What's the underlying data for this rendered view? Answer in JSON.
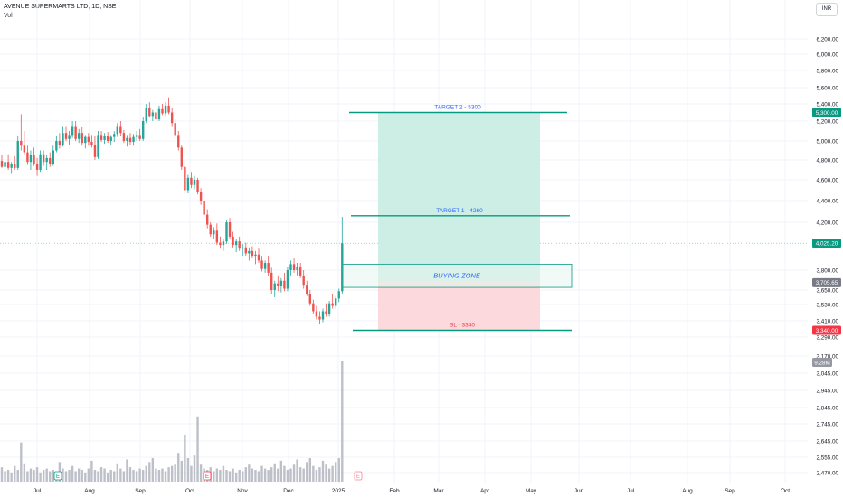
{
  "header": {
    "symbol_title": "AVENUE SUPERMARTS LTD, 1D, NSE",
    "volume_label": "Vol",
    "currency_button": "INR"
  },
  "colors": {
    "up": "#26a69a",
    "down": "#ef5350",
    "volume": "#b2b5be",
    "target_line": "#089981",
    "target_zone_fill": "#cdeee4",
    "stop_zone_fill": "#fcd9dc",
    "stop_line": "#089981",
    "buying_zone_border": "#089981",
    "buying_zone_fill": "#e6f5ee",
    "buying_zone_text": "#2962ff",
    "last_price_badge": "#089981",
    "target2_badge": "#089981",
    "sl_badge": "#f23645",
    "buy_badge": "#787b86",
    "vol_badge": "#9598a1"
  },
  "chart_data": {
    "type": "candlestick",
    "price_axis": {
      "ticks": [
        "6,200.00",
        "6,000.00",
        "5,800.00",
        "5,600.00",
        "5,400.00",
        "5,200.00",
        "5,000.00",
        "4,800.00",
        "4,600.00",
        "4,400.00",
        "4,200.00",
        "3,800.00",
        "3,650.00",
        "3,530.00",
        "3,410.00",
        "3,290.00",
        "3,170.00",
        "3,045.00",
        "2,945.00",
        "2,845.00",
        "2,745.00",
        "2,645.00",
        "2,555.00",
        "2,470.00"
      ],
      "tick_values": [
        6200,
        6000,
        5800,
        5600,
        5400,
        5200,
        5000,
        4800,
        4600,
        4400,
        4200,
        3800,
        3650,
        3530,
        3410,
        3290,
        3170,
        3045,
        2945,
        2845,
        2745,
        2645,
        2555,
        2470
      ],
      "scale": "non-linear"
    },
    "time_axis": [
      "Jul",
      "Aug",
      "Sep",
      "Oct",
      "Nov",
      "Dec",
      "2025",
      "Feb",
      "Mar",
      "Apr",
      "May",
      "Jun",
      "Jul",
      "Aug",
      "Sep",
      "Oct"
    ],
    "candles": [
      {
        "o": 4790,
        "h": 4850,
        "l": 4720,
        "c": 4730
      },
      {
        "o": 4730,
        "h": 4800,
        "l": 4690,
        "c": 4780
      },
      {
        "o": 4780,
        "h": 4860,
        "l": 4700,
        "c": 4720
      },
      {
        "o": 4720,
        "h": 4780,
        "l": 4660,
        "c": 4760
      },
      {
        "o": 4760,
        "h": 4840,
        "l": 4700,
        "c": 4720
      },
      {
        "o": 4720,
        "h": 5050,
        "l": 4700,
        "c": 5000
      },
      {
        "o": 5000,
        "h": 5280,
        "l": 4900,
        "c": 4950
      },
      {
        "o": 4950,
        "h": 5100,
        "l": 4850,
        "c": 4880
      },
      {
        "o": 4880,
        "h": 4950,
        "l": 4750,
        "c": 4780
      },
      {
        "o": 4780,
        "h": 4900,
        "l": 4700,
        "c": 4850
      },
      {
        "o": 4850,
        "h": 4930,
        "l": 4740,
        "c": 4760
      },
      {
        "o": 4760,
        "h": 4820,
        "l": 4640,
        "c": 4700
      },
      {
        "o": 4700,
        "h": 4900,
        "l": 4680,
        "c": 4860
      },
      {
        "o": 4860,
        "h": 4900,
        "l": 4740,
        "c": 4780
      },
      {
        "o": 4780,
        "h": 4850,
        "l": 4700,
        "c": 4820
      },
      {
        "o": 4820,
        "h": 4880,
        "l": 4730,
        "c": 4760
      },
      {
        "o": 4760,
        "h": 4950,
        "l": 4740,
        "c": 4900
      },
      {
        "o": 4900,
        "h": 5050,
        "l": 4880,
        "c": 5000
      },
      {
        "o": 5000,
        "h": 5080,
        "l": 4920,
        "c": 4960
      },
      {
        "o": 4960,
        "h": 5150,
        "l": 4940,
        "c": 5080
      },
      {
        "o": 5080,
        "h": 5150,
        "l": 5000,
        "c": 5020
      },
      {
        "o": 5020,
        "h": 5100,
        "l": 4960,
        "c": 5060
      },
      {
        "o": 5060,
        "h": 5200,
        "l": 5030,
        "c": 5150
      },
      {
        "o": 5150,
        "h": 5200,
        "l": 5000,
        "c": 5020
      },
      {
        "o": 5020,
        "h": 5120,
        "l": 4980,
        "c": 5080
      },
      {
        "o": 5080,
        "h": 5140,
        "l": 4950,
        "c": 4980
      },
      {
        "o": 4980,
        "h": 5060,
        "l": 4920,
        "c": 5040
      },
      {
        "o": 5040,
        "h": 5080,
        "l": 4950,
        "c": 4990
      },
      {
        "o": 4990,
        "h": 5060,
        "l": 4930,
        "c": 4960
      },
      {
        "o": 4960,
        "h": 5050,
        "l": 4800,
        "c": 4830
      },
      {
        "o": 4830,
        "h": 5100,
        "l": 4810,
        "c": 5060
      },
      {
        "o": 5060,
        "h": 5100,
        "l": 4990,
        "c": 5010
      },
      {
        "o": 5010,
        "h": 5080,
        "l": 4970,
        "c": 5050
      },
      {
        "o": 5050,
        "h": 5090,
        "l": 4980,
        "c": 5000
      },
      {
        "o": 5000,
        "h": 5060,
        "l": 4960,
        "c": 5040
      },
      {
        "o": 5040,
        "h": 5100,
        "l": 4990,
        "c": 5070
      },
      {
        "o": 5070,
        "h": 5180,
        "l": 5040,
        "c": 5150
      },
      {
        "o": 5150,
        "h": 5200,
        "l": 5050,
        "c": 5080
      },
      {
        "o": 5080,
        "h": 5110,
        "l": 4980,
        "c": 5000
      },
      {
        "o": 5000,
        "h": 5060,
        "l": 4940,
        "c": 5030
      },
      {
        "o": 5030,
        "h": 5080,
        "l": 4960,
        "c": 4990
      },
      {
        "o": 4990,
        "h": 5070,
        "l": 4950,
        "c": 5040
      },
      {
        "o": 5040,
        "h": 5100,
        "l": 5000,
        "c": 5060
      },
      {
        "o": 5060,
        "h": 5120,
        "l": 5000,
        "c": 5020
      },
      {
        "o": 5020,
        "h": 5250,
        "l": 5000,
        "c": 5200
      },
      {
        "o": 5200,
        "h": 5400,
        "l": 5180,
        "c": 5350
      },
      {
        "o": 5350,
        "h": 5420,
        "l": 5240,
        "c": 5260
      },
      {
        "o": 5260,
        "h": 5330,
        "l": 5200,
        "c": 5300
      },
      {
        "o": 5300,
        "h": 5350,
        "l": 5180,
        "c": 5220
      },
      {
        "o": 5220,
        "h": 5380,
        "l": 5200,
        "c": 5340
      },
      {
        "o": 5340,
        "h": 5400,
        "l": 5270,
        "c": 5290
      },
      {
        "o": 5290,
        "h": 5420,
        "l": 5260,
        "c": 5380
      },
      {
        "o": 5380,
        "h": 5480,
        "l": 5280,
        "c": 5300
      },
      {
        "o": 5300,
        "h": 5360,
        "l": 5150,
        "c": 5180
      },
      {
        "o": 5180,
        "h": 5220,
        "l": 5040,
        "c": 5060
      },
      {
        "o": 5060,
        "h": 5100,
        "l": 4900,
        "c": 4930
      },
      {
        "o": 4930,
        "h": 4950,
        "l": 4700,
        "c": 4730
      },
      {
        "o": 4730,
        "h": 4780,
        "l": 4460,
        "c": 4500
      },
      {
        "o": 4500,
        "h": 4650,
        "l": 4470,
        "c": 4620
      },
      {
        "o": 4620,
        "h": 4680,
        "l": 4520,
        "c": 4550
      },
      {
        "o": 4550,
        "h": 4640,
        "l": 4510,
        "c": 4600
      },
      {
        "o": 4600,
        "h": 4620,
        "l": 4460,
        "c": 4480
      },
      {
        "o": 4480,
        "h": 4520,
        "l": 4360,
        "c": 4400
      },
      {
        "o": 4400,
        "h": 4440,
        "l": 4240,
        "c": 4270
      },
      {
        "o": 4270,
        "h": 4320,
        "l": 4150,
        "c": 4180
      },
      {
        "o": 4180,
        "h": 4200,
        "l": 4080,
        "c": 4100
      },
      {
        "o": 4100,
        "h": 4160,
        "l": 4060,
        "c": 4130
      },
      {
        "o": 4130,
        "h": 4190,
        "l": 4010,
        "c": 4030
      },
      {
        "o": 4030,
        "h": 4080,
        "l": 3980,
        "c": 4010
      },
      {
        "o": 4010,
        "h": 4060,
        "l": 3960,
        "c": 4040
      },
      {
        "o": 4040,
        "h": 4220,
        "l": 4020,
        "c": 4200
      },
      {
        "o": 4200,
        "h": 4240,
        "l": 4060,
        "c": 4080
      },
      {
        "o": 4080,
        "h": 4120,
        "l": 3990,
        "c": 4010
      },
      {
        "o": 4010,
        "h": 4060,
        "l": 3950,
        "c": 4040
      },
      {
        "o": 4040,
        "h": 4080,
        "l": 3960,
        "c": 3980
      },
      {
        "o": 3980,
        "h": 4020,
        "l": 3920,
        "c": 3990
      },
      {
        "o": 3990,
        "h": 4030,
        "l": 3920,
        "c": 3940
      },
      {
        "o": 3940,
        "h": 3990,
        "l": 3880,
        "c": 3960
      },
      {
        "o": 3960,
        "h": 4000,
        "l": 3900,
        "c": 3920
      },
      {
        "o": 3920,
        "h": 3960,
        "l": 3850,
        "c": 3930
      },
      {
        "o": 3930,
        "h": 3980,
        "l": 3860,
        "c": 3880
      },
      {
        "o": 3880,
        "h": 3920,
        "l": 3790,
        "c": 3810
      },
      {
        "o": 3810,
        "h": 3880,
        "l": 3780,
        "c": 3860
      },
      {
        "o": 3860,
        "h": 3920,
        "l": 3760,
        "c": 3780
      },
      {
        "o": 3780,
        "h": 3820,
        "l": 3620,
        "c": 3650
      },
      {
        "o": 3650,
        "h": 3720,
        "l": 3590,
        "c": 3700
      },
      {
        "o": 3700,
        "h": 3760,
        "l": 3640,
        "c": 3680
      },
      {
        "o": 3680,
        "h": 3740,
        "l": 3630,
        "c": 3720
      },
      {
        "o": 3720,
        "h": 3780,
        "l": 3640,
        "c": 3660
      },
      {
        "o": 3660,
        "h": 3830,
        "l": 3640,
        "c": 3800
      },
      {
        "o": 3800,
        "h": 3880,
        "l": 3760,
        "c": 3850
      },
      {
        "o": 3850,
        "h": 3900,
        "l": 3780,
        "c": 3800
      },
      {
        "o": 3800,
        "h": 3860,
        "l": 3760,
        "c": 3830
      },
      {
        "o": 3830,
        "h": 3860,
        "l": 3740,
        "c": 3760
      },
      {
        "o": 3760,
        "h": 3800,
        "l": 3660,
        "c": 3690
      },
      {
        "o": 3690,
        "h": 3720,
        "l": 3600,
        "c": 3620
      },
      {
        "o": 3620,
        "h": 3650,
        "l": 3520,
        "c": 3540
      },
      {
        "o": 3540,
        "h": 3570,
        "l": 3460,
        "c": 3480
      },
      {
        "o": 3480,
        "h": 3520,
        "l": 3420,
        "c": 3440
      },
      {
        "o": 3440,
        "h": 3480,
        "l": 3385,
        "c": 3420
      },
      {
        "o": 3420,
        "h": 3500,
        "l": 3400,
        "c": 3480
      },
      {
        "o": 3480,
        "h": 3540,
        "l": 3440,
        "c": 3460
      },
      {
        "o": 3460,
        "h": 3560,
        "l": 3440,
        "c": 3540
      },
      {
        "o": 3540,
        "h": 3620,
        "l": 3500,
        "c": 3520
      },
      {
        "o": 3520,
        "h": 3600,
        "l": 3500,
        "c": 3580
      },
      {
        "o": 3580,
        "h": 3660,
        "l": 3550,
        "c": 3640
      },
      {
        "o": 3640,
        "h": 4250,
        "l": 3620,
        "c": 4025
      }
    ],
    "volume_axis_badge": "9.28M",
    "volume": [
      1.1,
      0.8,
      0.9,
      0.7,
      1.2,
      0.9,
      3.0,
      1.4,
      0.8,
      1.0,
      0.9,
      1.1,
      0.7,
      0.9,
      1.0,
      0.8,
      0.9,
      0.7,
      1.5,
      1.0,
      0.8,
      0.9,
      1.2,
      0.8,
      1.0,
      0.9,
      0.7,
      1.0,
      1.6,
      0.9,
      0.8,
      1.1,
      1.0,
      0.7,
      0.9,
      0.8,
      1.4,
      1.0,
      0.8,
      1.7,
      1.1,
      0.9,
      0.8,
      1.0,
      0.9,
      1.2,
      1.5,
      1.8,
      1.0,
      0.9,
      1.0,
      0.8,
      1.1,
      1.2,
      1.3,
      2.2,
      1.6,
      3.6,
      1.8,
      1.2,
      2.0,
      5.0,
      1.3,
      1.0,
      0.9,
      1.1,
      0.8,
      1.0,
      0.9,
      1.2,
      0.9,
      0.8,
      1.0,
      0.7,
      0.9,
      0.8,
      1.1,
      1.3,
      1.0,
      0.9,
      0.8,
      1.2,
      1.0,
      0.9,
      1.1,
      1.4,
      1.0,
      1.6,
      1.2,
      0.9,
      1.0,
      1.3,
      1.7,
      1.1,
      1.0,
      1.5,
      1.8,
      1.2,
      0.9,
      1.1,
      1.6,
      1.3,
      1.0,
      1.2,
      1.5,
      1.8,
      9.28
    ],
    "annotations": {
      "target2": {
        "label": "TARGET 2 - 5300",
        "value": 5300,
        "badge": "5,300.00"
      },
      "target1": {
        "label": "TARGET 1 - 4260",
        "value": 4260
      },
      "buying_zone": {
        "label": "BUYING ZONE",
        "high": 3850,
        "low": 3670,
        "badge": "3,705.65"
      },
      "stop_loss": {
        "label": "SL - 3340",
        "value": 3340,
        "badge": "3,340.00"
      },
      "last_price_badge": "4,025.20",
      "last_price": 4025.2
    },
    "event_markers": [
      "E",
      "E",
      "E"
    ]
  }
}
